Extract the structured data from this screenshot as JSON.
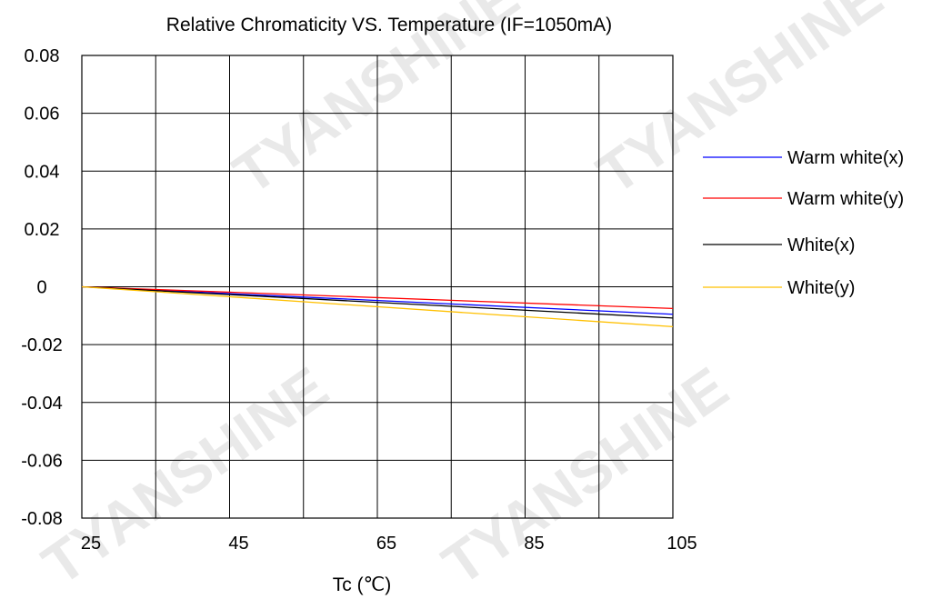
{
  "chart_data": {
    "type": "line",
    "title": "Relative Chromaticity VS. Temperature (IF=1050mA)",
    "xlabel": "Tc (℃)",
    "ylabel": "",
    "xlim": [
      25,
      105
    ],
    "ylim": [
      -0.08,
      0.08
    ],
    "x_ticks": [
      25,
      45,
      65,
      85,
      105
    ],
    "y_ticks": [
      0.08,
      0.06,
      0.04,
      0.02,
      0,
      -0.02,
      -0.04,
      -0.06,
      -0.08
    ],
    "y_tick_labels": [
      "0.08",
      "0.06",
      "0.04",
      "0.02",
      "0",
      "-0.02",
      "-0.04",
      "-0.06",
      "-0.08"
    ],
    "grid": true,
    "legend_position": "right",
    "series": [
      {
        "name": "Warm white(x)",
        "color": "#0000ff",
        "x": [
          25,
          105
        ],
        "y": [
          0,
          -0.0095
        ]
      },
      {
        "name": "Warm white(y)",
        "color": "#ff0000",
        "x": [
          25,
          105
        ],
        "y": [
          0,
          -0.0075
        ]
      },
      {
        "name": "White(x)",
        "color": "#000000",
        "x": [
          25,
          105
        ],
        "y": [
          0,
          -0.0108
        ]
      },
      {
        "name": "White(y)",
        "color": "#ffc000",
        "x": [
          25,
          105
        ],
        "y": [
          0,
          -0.0138
        ]
      }
    ]
  },
  "watermark": {
    "brand": "TYANSHINE"
  }
}
